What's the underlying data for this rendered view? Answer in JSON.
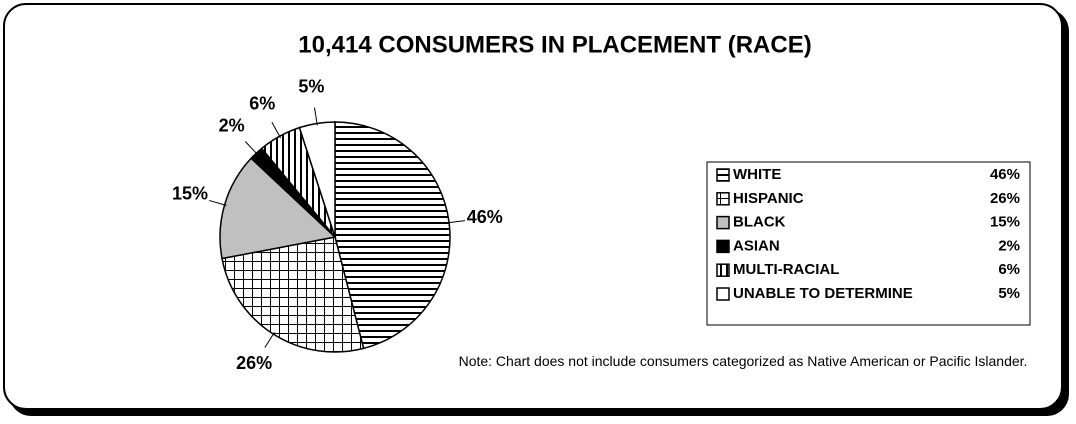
{
  "chart_data": {
    "type": "pie",
    "title": "10,414 CONSUMERS IN PLACEMENT (RACE)",
    "categories": [
      "WHITE",
      "HISPANIC",
      "BLACK",
      "ASIAN",
      "MULTI-RACIAL",
      "UNABLE TO DETERMINE"
    ],
    "values": [
      46,
      26,
      15,
      2,
      6,
      5
    ],
    "value_labels": [
      "46%",
      "26%",
      "15%",
      "2%",
      "6%",
      "5%"
    ],
    "colors": [
      "#ffffff",
      "#ffffff",
      "#c0c0c0",
      "#000000",
      "#ffffff",
      "#ffffff"
    ],
    "patterns": [
      "horizontal",
      "grid",
      "solid",
      "solid",
      "vertical",
      "solid"
    ],
    "legend": "right",
    "annotation": "Note: Chart does not include consumers categorized as Native American or Pacific Islander."
  }
}
